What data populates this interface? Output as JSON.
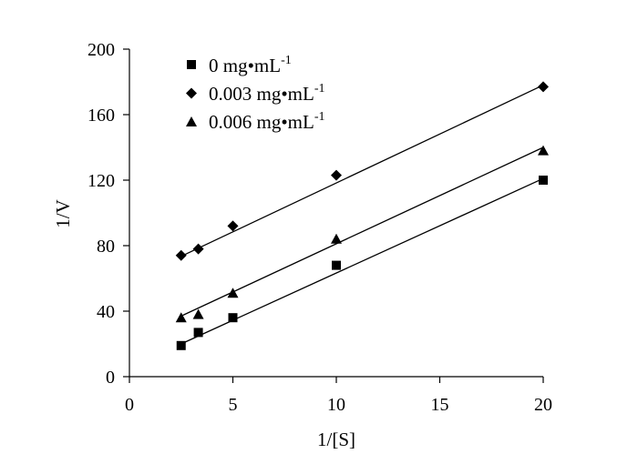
{
  "chart_data": {
    "type": "scatter",
    "title": "",
    "xlabel": "1/[S]",
    "ylabel": "1/V",
    "xlim": [
      0,
      20
    ],
    "ylim": [
      0,
      200
    ],
    "xticks": [
      0,
      5,
      10,
      15,
      20
    ],
    "yticks": [
      0,
      40,
      80,
      120,
      160,
      200
    ],
    "grid": false,
    "legend_position": "top-left",
    "series": [
      {
        "name": "0 mg•mL-1",
        "label_main": "0 mg•mL",
        "label_sup": "-1",
        "marker": "square",
        "x": [
          2.5,
          3.33,
          5,
          10,
          20
        ],
        "values": [
          19,
          27,
          36,
          68,
          120
        ],
        "fit": {
          "x": [
            2.5,
            20
          ],
          "y": [
            20,
            121
          ]
        }
      },
      {
        "name": "0.003 mg•mL-1",
        "label_main": "0.003 mg•mL",
        "label_sup": "-1",
        "marker": "diamond",
        "x": [
          2.5,
          3.33,
          5,
          10,
          20
        ],
        "values": [
          74,
          78,
          92,
          123,
          177
        ],
        "fit": {
          "x": [
            2.5,
            20
          ],
          "y": [
            73.5,
            178
          ]
        }
      },
      {
        "name": "0.006 mg•mL-1",
        "label_main": "0.006 mg•mL",
        "label_sup": "-1",
        "marker": "triangle",
        "x": [
          2.5,
          3.33,
          5,
          10,
          20
        ],
        "values": [
          36,
          38,
          51,
          84,
          138
        ],
        "fit": {
          "x": [
            2.5,
            20
          ],
          "y": [
            37,
            140
          ]
        }
      }
    ]
  }
}
